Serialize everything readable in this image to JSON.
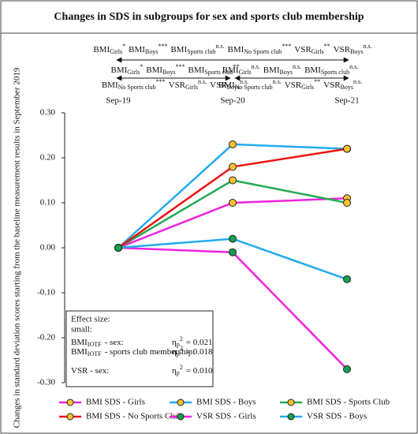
{
  "chart_data": {
    "type": "line",
    "title": "Changes in SDS in subgroups for sex and sports club membership",
    "y_label": "Changes in standard deviation scores starting from the baseline measurement results in September 2019",
    "categories": [
      "Sep-19",
      "Sep-20",
      "Sep-21"
    ],
    "ylim": [
      -0.3,
      0.3
    ],
    "yticks": [
      {
        "value": 0.3,
        "label": "0.30"
      },
      {
        "value": 0.2,
        "label": "0.20"
      },
      {
        "value": 0.1,
        "label": "0.10"
      },
      {
        "value": 0,
        "label": "0.00"
      },
      {
        "value": -0.1,
        "label": "-0.10"
      },
      {
        "value": -0.2,
        "label": "-0.20"
      },
      {
        "value": -0.3,
        "label": "-0.30"
      }
    ],
    "grid": false,
    "legend": "bottom",
    "series": [
      {
        "name": "BMI SDS - Girls",
        "color": "#ee22dd",
        "marker_color": "#fbc02d",
        "values": [
          0,
          0.1,
          0.11
        ]
      },
      {
        "name": "BMI SDS - Boys",
        "color": "#22aaee",
        "marker_color": "#fbc02d",
        "values": [
          0,
          0.23,
          0.22
        ]
      },
      {
        "name": "BMI SDS - Sports Club",
        "color": "#22aa55",
        "marker_color": "#fbc02d",
        "values": [
          0,
          0.15,
          0.1
        ]
      },
      {
        "name": "BMI SDS - No Sports Club",
        "color": "#ee1111",
        "marker_color": "#fbc02d",
        "values": [
          0,
          0.18,
          0.22
        ]
      },
      {
        "name": "VSR SDS - Girls",
        "color": "#ee22dd",
        "marker_color": "#11a050",
        "values": [
          0,
          -0.01,
          -0.27
        ]
      },
      {
        "name": "VSR SDS - Boys",
        "color": "#22aaee",
        "marker_color": "#11a050",
        "values": [
          0,
          0.02,
          -0.07
        ]
      }
    ],
    "annotations": {
      "overall": [
        {
          "text": "BMI",
          "sub": "Girls",
          "sup": "*"
        },
        {
          "text": "BMI",
          "sub": "Boys",
          "sup": "***"
        },
        {
          "text": "BMI",
          "sub": "Sports club",
          "sup": "n.s."
        },
        {
          "text": "BMI",
          "sub": "No Sports club",
          "sup": "***"
        },
        {
          "text": "VSR",
          "sub": "Girls",
          "sup": "**"
        },
        {
          "text": "VSR",
          "sub": "Boys",
          "sup": "n.s."
        }
      ],
      "first_period": [
        [
          {
            "text": "BMI",
            "sub": "Girls",
            "sup": "*"
          },
          {
            "text": "BMI",
            "sub": "Boys",
            "sup": "***"
          },
          {
            "text": "BMI",
            "sub": "Sports club",
            "sup": "**"
          }
        ],
        [
          {
            "text": "BMI",
            "sub": "No Sports club",
            "sup": "***"
          },
          {
            "text": "VSR",
            "sub": "Girls",
            "sup": "n.s."
          },
          {
            "text": "VSR",
            "sub": "Boys",
            "sup": "n.s."
          }
        ]
      ],
      "second_period": [
        [
          {
            "text": "BMI",
            "sub": "Girls",
            "sup": "n.s."
          },
          {
            "text": "BMI",
            "sub": "Boys",
            "sup": "n.s."
          },
          {
            "text": "BMI",
            "sub": "Sports club",
            "sup": "n.s."
          }
        ],
        [
          {
            "text": "BMI",
            "sub": "No Sports club",
            "sup": "n.s."
          },
          {
            "text": "VSR",
            "sub": "Girls",
            "sup": "**"
          },
          {
            "text": "VSR",
            "sub": "Boys",
            "sup": "n.s."
          }
        ]
      ]
    },
    "effect_size": {
      "heading": "Effect size:",
      "level": "small:",
      "rows": [
        {
          "label": [
            {
              "text": "BMI",
              "sub": "IOTF"
            },
            {
              "text": "- sex:"
            }
          ],
          "value": [
            {
              "text": "η",
              "sub": "p",
              "sup": "2"
            },
            {
              "text": "= 0.021"
            }
          ]
        },
        {
          "label": [
            {
              "text": "BMI",
              "sub": "IOTF"
            },
            {
              "text": "- sports club membership:"
            }
          ],
          "value": [
            {
              "text": "η",
              "sub": "p",
              "sup": "2"
            },
            {
              "text": "= 0.018"
            }
          ]
        },
        {
          "label": [
            {
              "text": "VSR - sex:"
            }
          ],
          "value": [
            {
              "text": "η",
              "sub": "p",
              "sup": "2"
            },
            {
              "text": "= 0.010"
            }
          ]
        }
      ]
    }
  }
}
